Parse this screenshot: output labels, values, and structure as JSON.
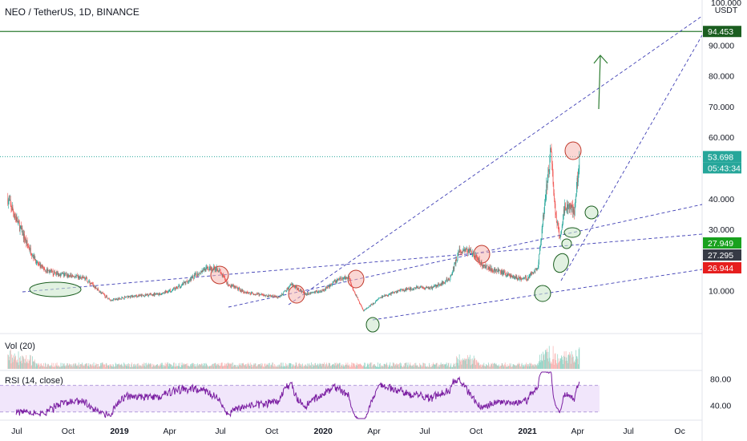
{
  "header": {
    "symbol_title": "NEO / TetherUS, 1D, BINANCE"
  },
  "panes": {
    "volume_label": "Vol (20)",
    "rsi_label": "RSI (14, close)"
  },
  "price_axis": {
    "currency": "USDT",
    "top_tick": "100.000",
    "ticks": [
      "90.000",
      "80.000",
      "70.000",
      "60.000",
      "40.000",
      "30.000",
      "10.000"
    ],
    "tags": [
      {
        "text": "94.453",
        "bg": "#1b5e20"
      },
      {
        "text": "53.698",
        "bg": "#26a69a"
      },
      {
        "text": "05:43:34",
        "bg": "#26a69a"
      },
      {
        "text": "27.949",
        "bg": "#19a11e"
      },
      {
        "text": "27.295",
        "bg": "#363a45"
      },
      {
        "text": "26.944",
        "bg": "#e61e1e"
      }
    ]
  },
  "rsi_axis": {
    "ticks": [
      "80.00",
      "40.00"
    ]
  },
  "time_axis": {
    "ticks": [
      "Jul",
      "Oct",
      "2019",
      "Apr",
      "Jul",
      "Oct",
      "2020",
      "Apr",
      "Jul",
      "Oct",
      "2021",
      "Apr",
      "Jul",
      "Oc"
    ]
  },
  "chart_data": {
    "type": "candlestick",
    "title": "NEO / TetherUS, 1D, BINANCE",
    "y_unit": "USDT",
    "price_range": [
      0,
      100
    ],
    "close_series": {
      "x": [
        "2018-06-15",
        "2018-07-01",
        "2018-07-20",
        "2018-08-10",
        "2018-09-01",
        "2018-10-01",
        "2018-11-01",
        "2018-11-25",
        "2018-12-15",
        "2019-01-15",
        "2019-02-15",
        "2019-03-15",
        "2019-04-15",
        "2019-05-10",
        "2019-06-01",
        "2019-06-25",
        "2019-07-15",
        "2019-08-15",
        "2019-09-15",
        "2019-10-15",
        "2019-11-05",
        "2019-12-01",
        "2019-12-31",
        "2020-01-31",
        "2020-02-15",
        "2020-03-01",
        "2020-03-13",
        "2020-04-15",
        "2020-05-15",
        "2020-06-15",
        "2020-07-15",
        "2020-08-15",
        "2020-09-01",
        "2020-09-20",
        "2020-10-15",
        "2020-11-15",
        "2020-12-15",
        "2021-01-01",
        "2021-01-20",
        "2021-02-05",
        "2021-02-12",
        "2021-02-20",
        "2021-02-28",
        "2021-03-10",
        "2021-03-20",
        "2021-03-27",
        "2021-04-04"
      ],
      "values": [
        40,
        33,
        25,
        18,
        16,
        15,
        14,
        10,
        7,
        8,
        8.5,
        9,
        11,
        14,
        17,
        17.5,
        12,
        9.5,
        8.5,
        8,
        12,
        9,
        10,
        14,
        14.5,
        8,
        3.5,
        8,
        10,
        11,
        11,
        14,
        23,
        23,
        18,
        16,
        14,
        14,
        18,
        45,
        56,
        35,
        28,
        38,
        37,
        36,
        53.7
      ]
    },
    "annotation_levels": [
      94.453,
      53.698,
      27.949,
      27.295,
      26.944
    ],
    "rsi": {
      "label": "RSI (14, close)",
      "ticks": [
        80,
        40
      ],
      "band": [
        30,
        70
      ]
    },
    "volume": {
      "label": "Vol (20)"
    },
    "grid": false
  }
}
